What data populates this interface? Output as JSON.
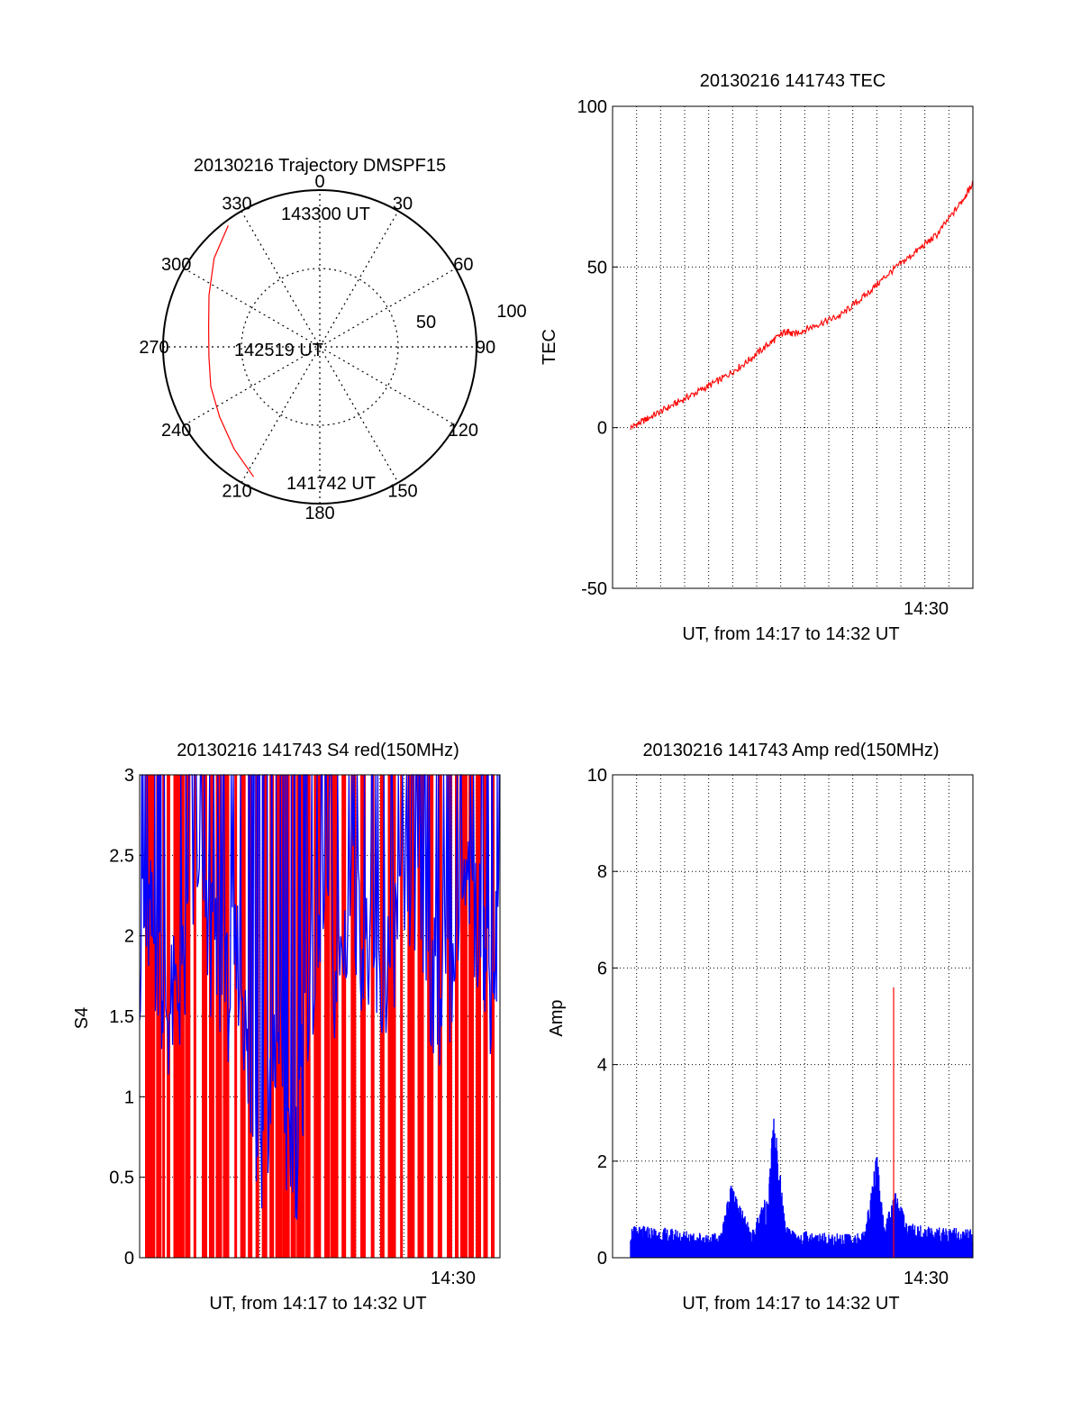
{
  "chart_data": [
    {
      "type": "polar",
      "title": "20130216 Trajectory DMSPF15",
      "azimuth_labels": [
        "0",
        "30",
        "60",
        "90",
        "120",
        "150",
        "180",
        "210",
        "240",
        "270",
        "300",
        "330"
      ],
      "radial_labels": [
        "50",
        "100"
      ],
      "radial_max": 100,
      "time_labels": {
        "start": "141742 UT",
        "mid": "142519 UT",
        "end": "143300 UT"
      },
      "track_color": "#ff0000",
      "track": [
        {
          "az": 207,
          "r": 93
        },
        {
          "az": 220,
          "r": 85
        },
        {
          "az": 235,
          "r": 78
        },
        {
          "az": 250,
          "r": 74
        },
        {
          "az": 265,
          "r": 71
        },
        {
          "az": 280,
          "r": 72
        },
        {
          "az": 295,
          "r": 78
        },
        {
          "az": 310,
          "r": 88
        },
        {
          "az": 323,
          "r": 97
        }
      ]
    },
    {
      "type": "line",
      "title": "20130216 141743 TEC",
      "ylabel": "TEC",
      "xlabel": "UT, from 14:17 to 14:32 UT",
      "x_tick_labels": [
        "14:30"
      ],
      "y_ticks": [
        "-50",
        "0",
        "50",
        "100"
      ],
      "ylim": [
        -50,
        100
      ],
      "xlim_min": [
        17.0,
        32.0
      ],
      "grid": true,
      "series": [
        {
          "color": "#ff0000",
          "x_min": [
            17.75,
            18.5,
            19.5,
            20.5,
            21.5,
            22.5,
            23.5,
            24.2,
            24.5,
            25.5,
            26.5,
            27.5,
            28.5,
            29.5,
            30.5,
            31.5,
            32.0
          ],
          "values": [
            0,
            3,
            7,
            11,
            15,
            20,
            26,
            30,
            29,
            32,
            35,
            41,
            48,
            54,
            60,
            70,
            76
          ]
        }
      ]
    },
    {
      "type": "line",
      "title": "20130216 141743 S4 red(150MHz)",
      "ylabel": "S4",
      "xlabel": "UT, from 14:17 to 14:32 UT",
      "x_tick_labels": [
        "14:30"
      ],
      "y_ticks": [
        "0",
        "0.5",
        "1",
        "1.5",
        "2",
        "2.5",
        "3"
      ],
      "ylim": [
        0,
        3
      ],
      "xlim_min": [
        17.0,
        32.0
      ],
      "grid": true,
      "series": [
        {
          "color": "#ff0000",
          "style": "dense vertical spikes reaching full scale",
          "spike_x_min": [
            17.3,
            17.5,
            17.8,
            18.0,
            18.2,
            18.5,
            18.7,
            19.0,
            19.3,
            19.7,
            20.0,
            20.3,
            20.6,
            21.0,
            21.3,
            21.6,
            21.9,
            22.2,
            22.5,
            22.8,
            23.1,
            23.4,
            23.7,
            24.0,
            24.4,
            24.8,
            25.1,
            25.5,
            25.9,
            26.3,
            26.7,
            27.1,
            27.5,
            27.9,
            28.3,
            28.7,
            29.1,
            29.5,
            29.9,
            30.2,
            30.5,
            30.8,
            31.1,
            31.4,
            31.7
          ]
        },
        {
          "color": "#0000ff",
          "x_min": [
            17.0,
            17.4,
            17.8,
            18.2,
            18.8,
            19.4,
            20.0,
            20.6,
            21.2,
            21.6,
            22.0,
            22.4,
            22.8,
            23.2,
            23.6,
            24.0,
            24.6,
            25.2,
            25.8,
            26.4,
            27.0,
            27.6,
            28.2,
            28.8,
            29.4,
            30.0,
            30.6,
            31.2,
            31.6,
            32.0
          ],
          "values": [
            1.9,
            2.1,
            1.8,
            1.5,
            1.7,
            2.2,
            1.9,
            1.6,
            1.9,
            0.9,
            0.7,
            0.8,
            1.5,
            0.5,
            0.7,
            1.6,
            2.0,
            1.7,
            2.2,
            1.9,
            1.6,
            2.0,
            2.3,
            1.9,
            1.6,
            1.8,
            2.2,
            2.0,
            1.7,
            2.1
          ]
        }
      ]
    },
    {
      "type": "line",
      "title": "20130216 141743 Amp red(150MHz)",
      "ylabel": "Amp",
      "xlabel": "UT, from 14:17 to 14:32 UT",
      "x_tick_labels": [
        "14:30"
      ],
      "y_ticks": [
        "0",
        "2",
        "4",
        "6",
        "8",
        "10"
      ],
      "ylim": [
        0,
        10
      ],
      "xlim_min": [
        17.0,
        32.0
      ],
      "grid": true,
      "series": [
        {
          "color": "#0000ff",
          "x_min": [
            17.75,
            18.5,
            19.5,
            20.5,
            21.5,
            21.9,
            22.2,
            22.8,
            23.5,
            23.7,
            24.2,
            24.6,
            25.5,
            26.5,
            27.5,
            28.0,
            28.3,
            28.8,
            29.2,
            30.0,
            31.0,
            32.0
          ],
          "values": [
            0.6,
            0.6,
            0.55,
            0.5,
            0.45,
            1.4,
            1.1,
            0.5,
            1.3,
            2.9,
            0.6,
            0.5,
            0.5,
            0.45,
            0.5,
            2.0,
            0.6,
            1.3,
            0.7,
            0.6,
            0.55,
            0.6
          ]
        },
        {
          "color": "#ff0000",
          "spike_x_min": [
            28.7
          ],
          "spike_values": [
            5.6
          ]
        }
      ]
    }
  ]
}
